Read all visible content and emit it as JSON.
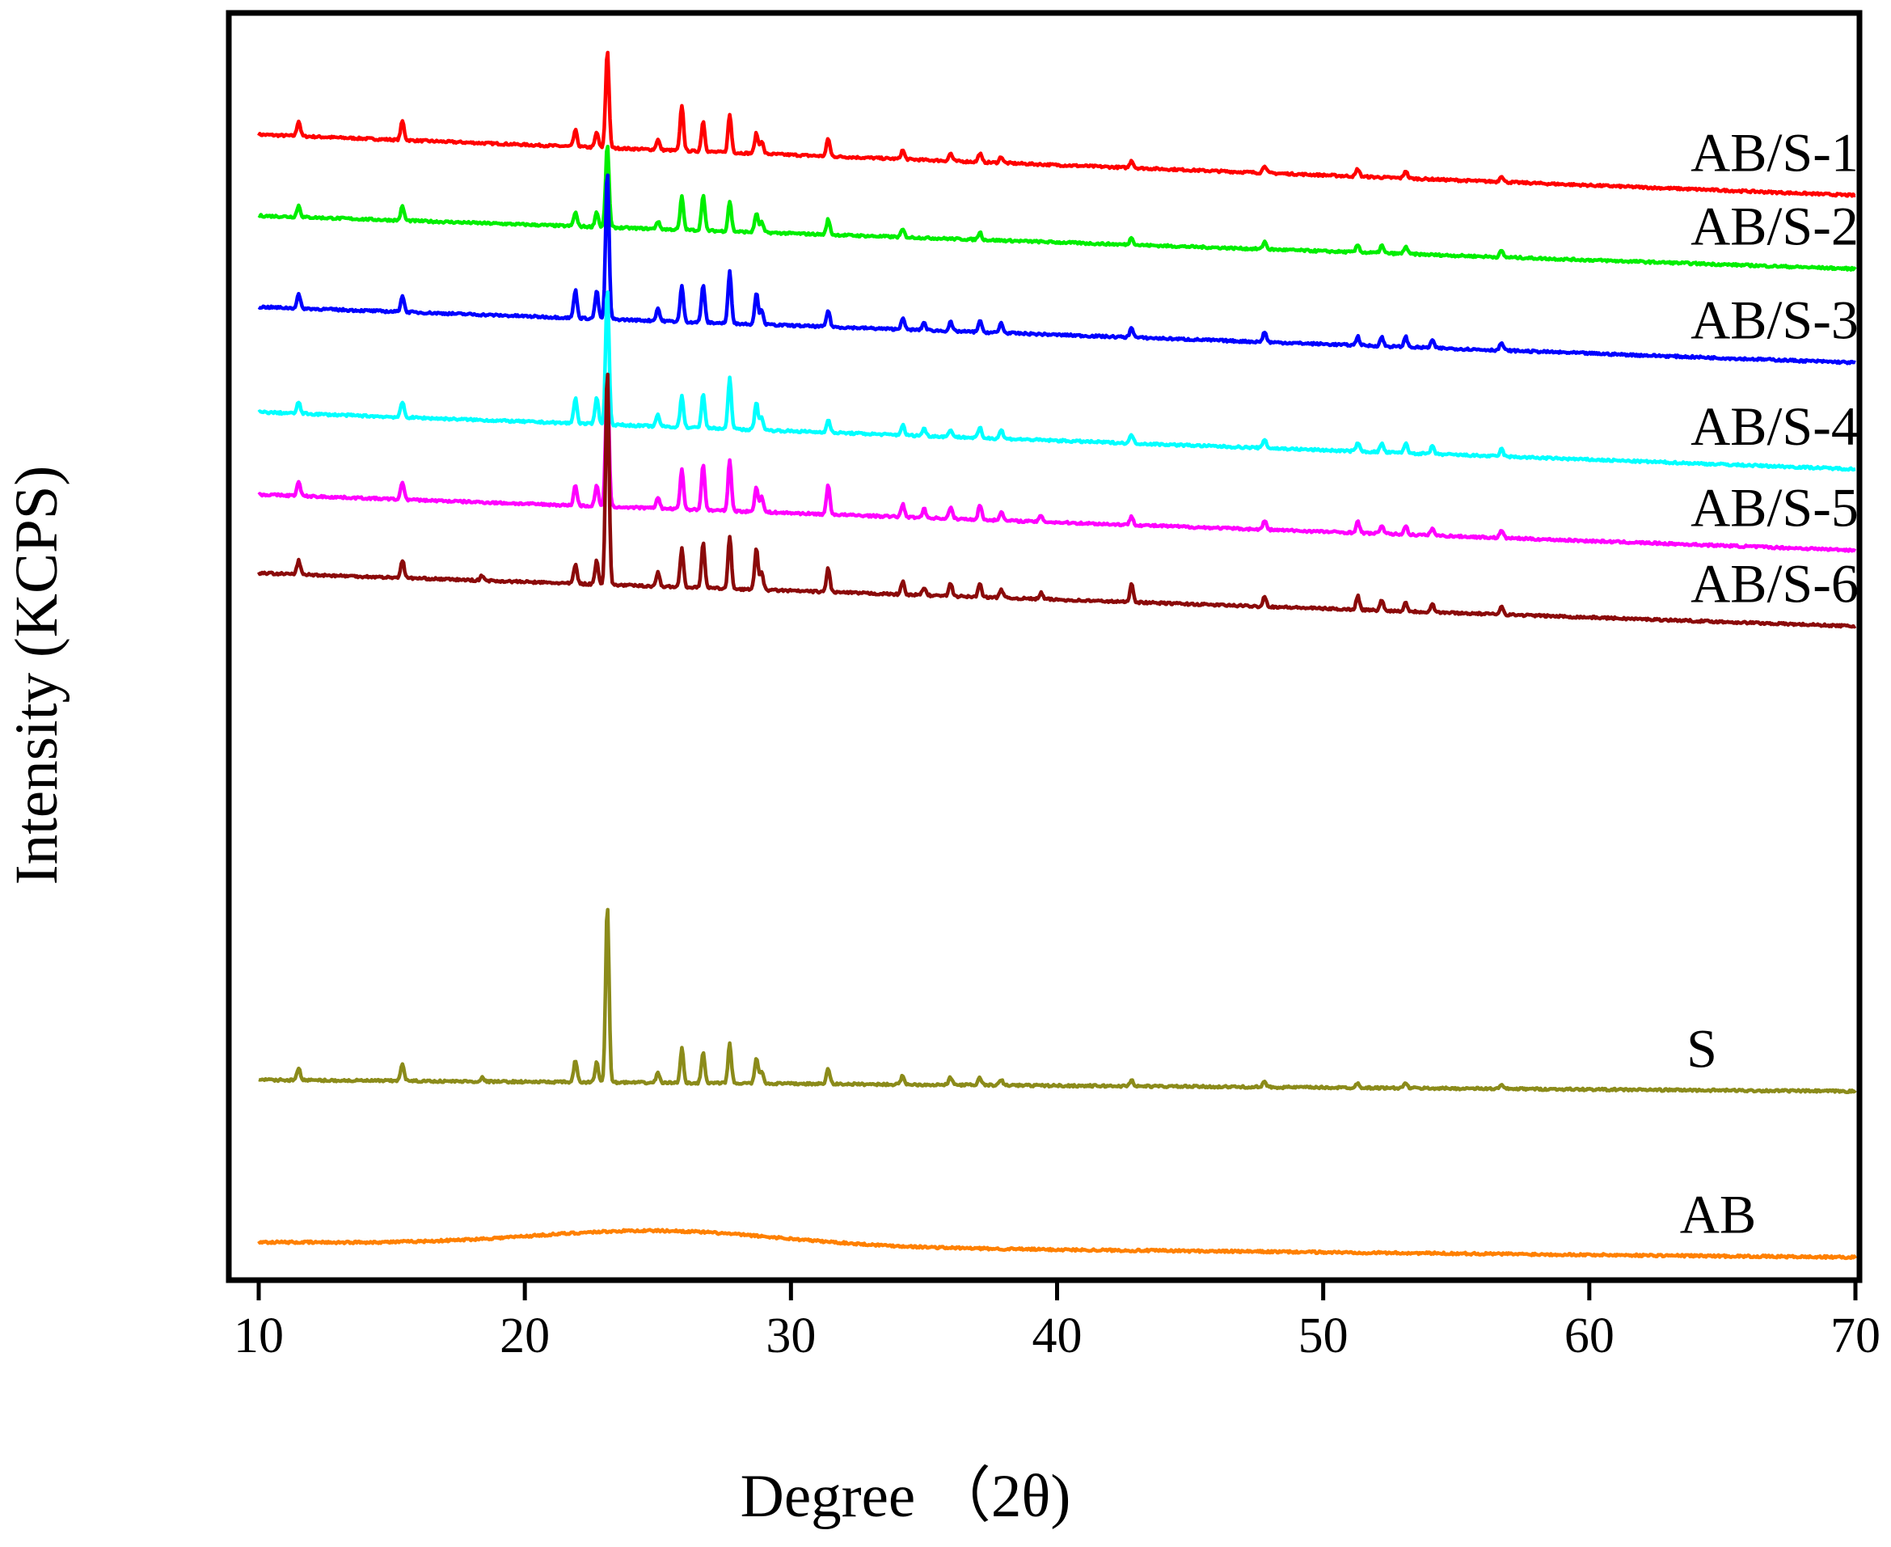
{
  "chart_data": {
    "type": "line",
    "title": "",
    "xlabel": "Degree （2θ)",
    "ylabel": "Intensity (KCPS)",
    "xlim": [
      9,
      70
    ],
    "x_ticks": [
      10,
      20,
      30,
      40,
      50,
      60,
      70
    ],
    "x_tick_labels": [
      "10",
      "20",
      "30",
      "40",
      "50",
      "60",
      "70"
    ],
    "y_ticks_shown": false,
    "grid": false,
    "legend": "inline labels at right end of each trace",
    "x_range_data": [
      10,
      70
    ],
    "series": [
      {
        "name": "AB/S-1",
        "label": "AB/S-1",
        "color": "#ff0000",
        "baseline_start": 0.904,
        "baseline_end": 0.856,
        "peaks": [
          [
            11.5,
            0.012
          ],
          [
            15.4,
            0.015
          ],
          [
            21.9,
            0.013
          ],
          [
            22.7,
            0.012
          ],
          [
            23.1,
            0.077
          ],
          [
            25.0,
            0.008
          ],
          [
            25.9,
            0.036
          ],
          [
            26.7,
            0.024
          ],
          [
            27.7,
            0.03
          ],
          [
            28.7,
            0.016
          ],
          [
            28.9,
            0.01
          ],
          [
            31.4,
            0.014
          ],
          [
            34.2,
            0.007
          ],
          [
            36.0,
            0.006
          ],
          [
            37.1,
            0.007
          ],
          [
            37.9,
            0.005
          ],
          [
            42.8,
            0.006
          ],
          [
            47.8,
            0.006
          ],
          [
            51.3,
            0.006
          ],
          [
            53.1,
            0.006
          ],
          [
            56.7,
            0.005
          ]
        ]
      },
      {
        "name": "AB/S-2",
        "label": "AB/S-2",
        "color": "#00ee00",
        "baseline_start": 0.84,
        "baseline_end": 0.798,
        "peaks": [
          [
            11.5,
            0.009
          ],
          [
            15.4,
            0.011
          ],
          [
            21.9,
            0.011
          ],
          [
            22.7,
            0.012
          ],
          [
            23.1,
            0.065
          ],
          [
            25.0,
            0.006
          ],
          [
            25.9,
            0.026
          ],
          [
            26.7,
            0.028
          ],
          [
            27.7,
            0.024
          ],
          [
            28.7,
            0.015
          ],
          [
            28.9,
            0.008
          ],
          [
            31.4,
            0.012
          ],
          [
            34.2,
            0.006
          ],
          [
            37.1,
            0.006
          ],
          [
            42.8,
            0.006
          ],
          [
            47.8,
            0.006
          ],
          [
            51.3,
            0.006
          ],
          [
            52.2,
            0.006
          ],
          [
            53.1,
            0.006
          ],
          [
            56.7,
            0.005
          ]
        ]
      },
      {
        "name": "AB/S-3",
        "label": "AB/S-3",
        "color": "#0000ff",
        "baseline_start": 0.768,
        "baseline_end": 0.724,
        "peaks": [
          [
            11.5,
            0.011
          ],
          [
            15.4,
            0.013
          ],
          [
            21.9,
            0.022
          ],
          [
            22.7,
            0.022
          ],
          [
            23.1,
            0.117
          ],
          [
            25.0,
            0.01
          ],
          [
            25.9,
            0.028
          ],
          [
            26.7,
            0.03
          ],
          [
            27.7,
            0.041
          ],
          [
            28.7,
            0.025
          ],
          [
            28.9,
            0.012
          ],
          [
            31.4,
            0.013
          ],
          [
            34.2,
            0.009
          ],
          [
            35.0,
            0.006
          ],
          [
            36.0,
            0.007
          ],
          [
            37.1,
            0.009
          ],
          [
            37.9,
            0.008
          ],
          [
            42.8,
            0.008
          ],
          [
            47.8,
            0.008
          ],
          [
            51.3,
            0.007
          ],
          [
            52.2,
            0.007
          ],
          [
            53.1,
            0.008
          ],
          [
            54.1,
            0.006
          ],
          [
            56.7,
            0.006
          ]
        ]
      },
      {
        "name": "AB/S-4",
        "label": "AB/S-4",
        "color": "#00ffff",
        "baseline_start": 0.685,
        "baseline_end": 0.64,
        "peaks": [
          [
            11.5,
            0.009
          ],
          [
            15.4,
            0.012
          ],
          [
            21.9,
            0.02
          ],
          [
            22.7,
            0.022
          ],
          [
            23.1,
            0.108
          ],
          [
            25.0,
            0.009
          ],
          [
            25.9,
            0.025
          ],
          [
            26.7,
            0.027
          ],
          [
            27.7,
            0.04
          ],
          [
            28.7,
            0.022
          ],
          [
            28.9,
            0.01
          ],
          [
            31.4,
            0.01
          ],
          [
            34.2,
            0.008
          ],
          [
            35.0,
            0.006
          ],
          [
            36.0,
            0.006
          ],
          [
            37.1,
            0.008
          ],
          [
            37.9,
            0.007
          ],
          [
            42.8,
            0.007
          ],
          [
            47.8,
            0.007
          ],
          [
            51.3,
            0.007
          ],
          [
            52.2,
            0.007
          ],
          [
            53.1,
            0.008
          ],
          [
            54.1,
            0.006
          ],
          [
            56.7,
            0.006
          ]
        ]
      },
      {
        "name": "AB/S-5",
        "label": "AB/S-5",
        "color": "#ff00ff",
        "baseline_start": 0.62,
        "baseline_end": 0.576,
        "peaks": [
          [
            11.5,
            0.011
          ],
          [
            15.4,
            0.014
          ],
          [
            21.9,
            0.016
          ],
          [
            22.7,
            0.017
          ],
          [
            23.1,
            0.1
          ],
          [
            25.0,
            0.009
          ],
          [
            25.9,
            0.032
          ],
          [
            26.7,
            0.036
          ],
          [
            27.7,
            0.04
          ],
          [
            28.7,
            0.02
          ],
          [
            28.9,
            0.012
          ],
          [
            31.4,
            0.023
          ],
          [
            34.2,
            0.01
          ],
          [
            35.0,
            0.007
          ],
          [
            36.0,
            0.009
          ],
          [
            37.1,
            0.012
          ],
          [
            37.9,
            0.007
          ],
          [
            39.4,
            0.005
          ],
          [
            42.8,
            0.007
          ],
          [
            47.8,
            0.007
          ],
          [
            51.3,
            0.009
          ],
          [
            52.2,
            0.007
          ],
          [
            53.1,
            0.007
          ],
          [
            54.1,
            0.006
          ],
          [
            56.7,
            0.006
          ]
        ]
      },
      {
        "name": "AB/S-6",
        "label": "AB/S-6",
        "color": "#8b0a0a",
        "baseline_start": 0.558,
        "baseline_end": 0.516,
        "peaks": [
          [
            11.5,
            0.011
          ],
          [
            15.4,
            0.014
          ],
          [
            18.4,
            0.004
          ],
          [
            21.9,
            0.015
          ],
          [
            22.7,
            0.019
          ],
          [
            23.1,
            0.17
          ],
          [
            25.0,
            0.011
          ],
          [
            25.9,
            0.031
          ],
          [
            26.7,
            0.036
          ],
          [
            27.7,
            0.041
          ],
          [
            28.7,
            0.033
          ],
          [
            28.9,
            0.013
          ],
          [
            31.4,
            0.019
          ],
          [
            34.2,
            0.01
          ],
          [
            35.0,
            0.006
          ],
          [
            36.0,
            0.01
          ],
          [
            37.1,
            0.011
          ],
          [
            37.9,
            0.007
          ],
          [
            39.4,
            0.005
          ],
          [
            42.8,
            0.015
          ],
          [
            47.8,
            0.008
          ],
          [
            51.3,
            0.011
          ],
          [
            52.2,
            0.008
          ],
          [
            53.1,
            0.007
          ],
          [
            54.1,
            0.007
          ],
          [
            56.7,
            0.007
          ]
        ]
      },
      {
        "name": "S",
        "label": "S",
        "color": "#8b8b1a",
        "baseline_start": 0.158,
        "baseline_end": 0.149,
        "peaks": [
          [
            11.5,
            0.01
          ],
          [
            15.4,
            0.014
          ],
          [
            18.4,
            0.003
          ],
          [
            21.9,
            0.017
          ],
          [
            22.7,
            0.016
          ],
          [
            23.1,
            0.14
          ],
          [
            25.0,
            0.008
          ],
          [
            25.9,
            0.027
          ],
          [
            26.7,
            0.024
          ],
          [
            27.7,
            0.031
          ],
          [
            28.7,
            0.02
          ],
          [
            28.9,
            0.01
          ],
          [
            31.4,
            0.012
          ],
          [
            34.2,
            0.007
          ],
          [
            36.0,
            0.006
          ],
          [
            37.1,
            0.006
          ],
          [
            37.9,
            0.004
          ],
          [
            42.8,
            0.005
          ],
          [
            47.8,
            0.004
          ],
          [
            51.3,
            0.004
          ],
          [
            53.1,
            0.004
          ],
          [
            56.7,
            0.003
          ]
        ]
      },
      {
        "name": "AB",
        "label": "AB",
        "color": "#ff8000",
        "baseline_start": 0.03,
        "baseline_end": 0.018,
        "hump": {
          "center": 25.0,
          "height": 0.012,
          "width": 6.5
        },
        "peaks": []
      }
    ]
  }
}
